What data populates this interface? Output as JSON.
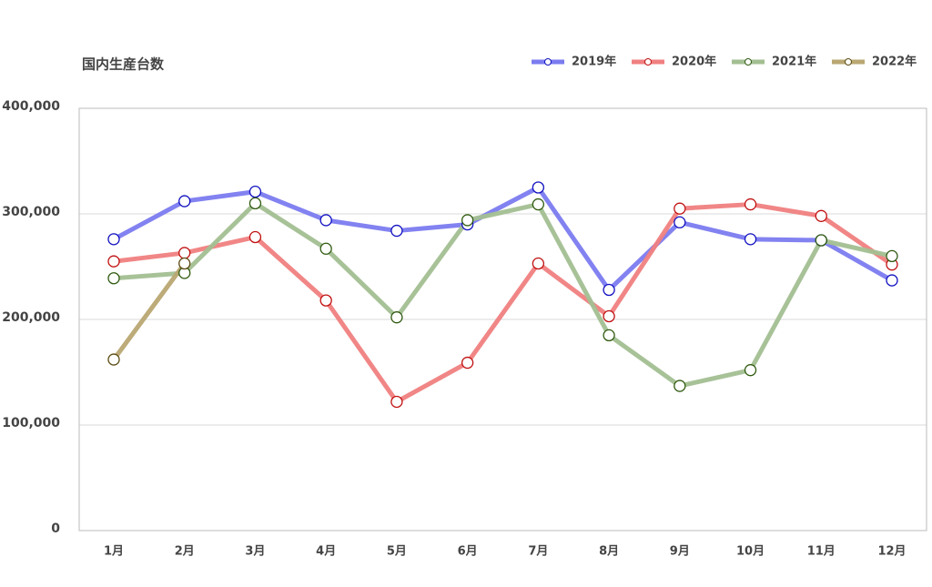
{
  "chart_data": {
    "type": "line",
    "title": "国内生産台数",
    "categories": [
      "1月",
      "2月",
      "3月",
      "4月",
      "5月",
      "6月",
      "7月",
      "8月",
      "9月",
      "10月",
      "11月",
      "12月"
    ],
    "series": [
      {
        "name": "2019年",
        "color": "#7b7bf0",
        "marker_edge_color": "#1010c0",
        "values": [
          276000,
          312000,
          321000,
          294000,
          284000,
          290000,
          325000,
          228000,
          292000,
          276000,
          275000,
          237000
        ]
      },
      {
        "name": "2020年",
        "color": "#f08080",
        "marker_edge_color": "#c01010",
        "values": [
          255000,
          263000,
          278000,
          218000,
          122000,
          159000,
          253000,
          203000,
          305000,
          309000,
          298000,
          252000
        ]
      },
      {
        "name": "2021年",
        "color": "#a3bf92",
        "marker_edge_color": "#2f5a10",
        "values": [
          239000,
          244000,
          310000,
          267000,
          202000,
          294000,
          309000,
          185000,
          137000,
          152000,
          275000,
          260000
        ]
      },
      {
        "name": "2022年",
        "color": "#b9a772",
        "marker_edge_color": "#5a4a10",
        "values": [
          162000,
          253000,
          null,
          null,
          null,
          null,
          null,
          null,
          null,
          null,
          null,
          null
        ]
      }
    ],
    "ylim": [
      0,
      400000
    ],
    "yticks": [
      0,
      {
        "value": 100000,
        "label": "100,000"
      },
      {
        "value": 200000,
        "label": "200,000"
      },
      {
        "value": 300000,
        "label": "300,000"
      },
      {
        "value": 400000,
        "label": "400,000"
      }
    ],
    "grid": true,
    "legend": "top-right"
  }
}
